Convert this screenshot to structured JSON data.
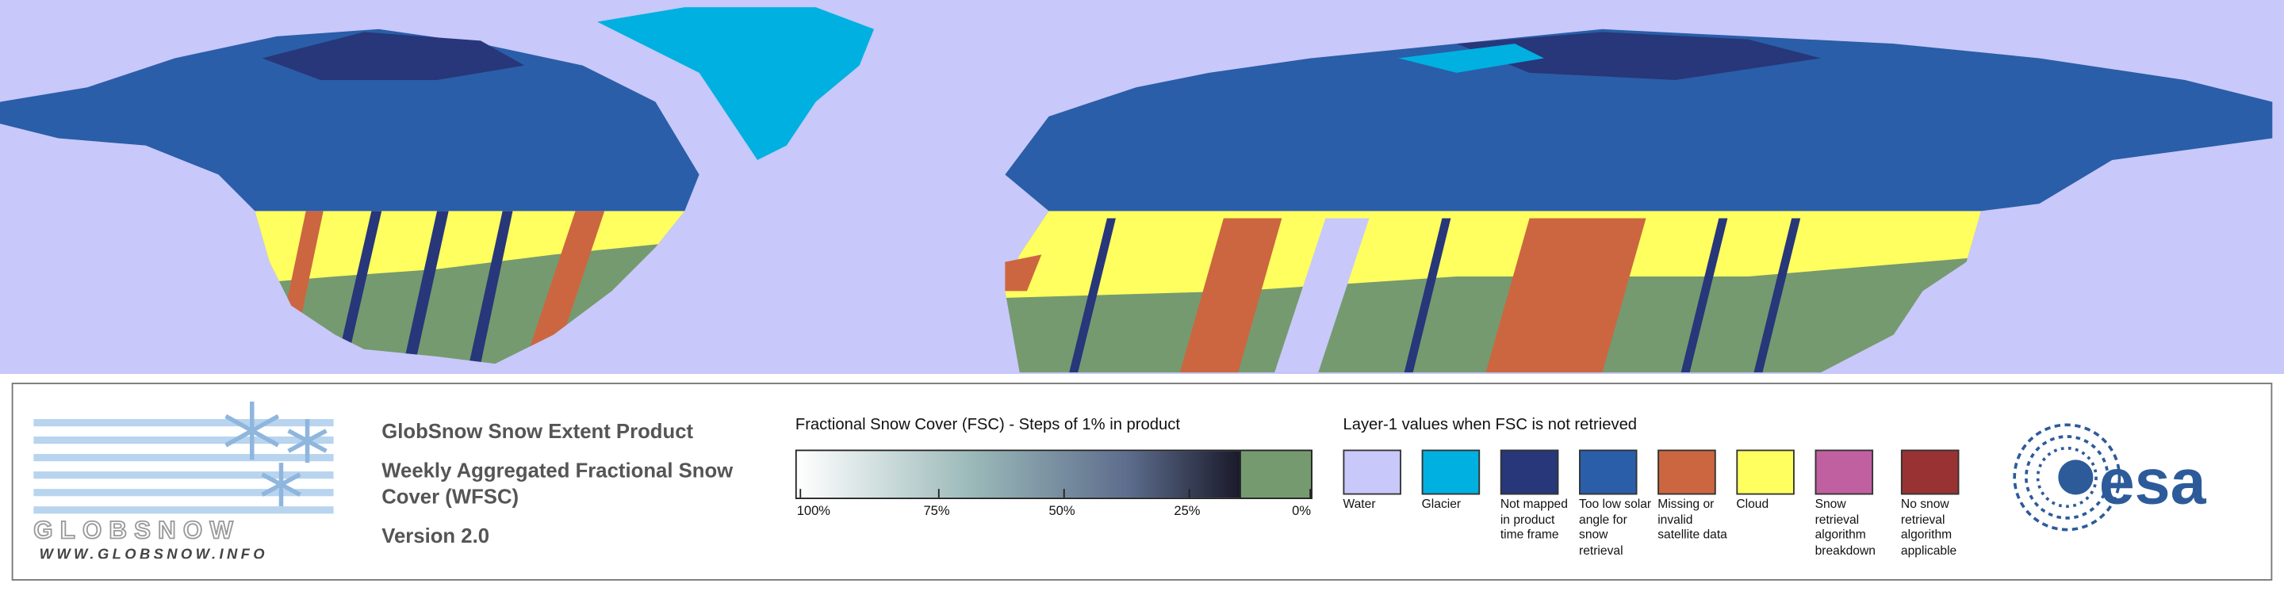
{
  "logo": {
    "name": "GLOBSNOW",
    "url": "WWW.GLOBSNOW.INFO"
  },
  "product": {
    "title": "GlobSnow Snow Extent Product",
    "subtitle": "Weekly Aggregated Fractional Snow Cover (WFSC)",
    "version": "Version 2.0"
  },
  "fsc_legend": {
    "title": "Fractional Snow Cover (FSC) - Steps of 1% in product",
    "ticks": [
      "100%",
      "75%",
      "50%",
      "25%",
      "0%"
    ]
  },
  "layer1_legend": {
    "title": "Layer-1 values when FSC is not retrieved",
    "items": [
      {
        "label": "Water",
        "color": "#c8c8fa"
      },
      {
        "label": "Glacier",
        "color": "#00b0e0"
      },
      {
        "label": "Not mapped in product time frame",
        "color": "#27377a"
      },
      {
        "label": "Too low solar angle for snow retrieval",
        "color": "#2a5ea8"
      },
      {
        "label": "Missing or invalid satellite data",
        "color": "#cc6640"
      },
      {
        "label": "Cloud",
        "color": "#ffff60"
      },
      {
        "label": "Snow retrieval algorithm breakdown",
        "color": "#c060a0"
      },
      {
        "label": "No snow retrieval algorithm applicable",
        "color": "#993333"
      }
    ]
  },
  "esa_logo": "esa"
}
